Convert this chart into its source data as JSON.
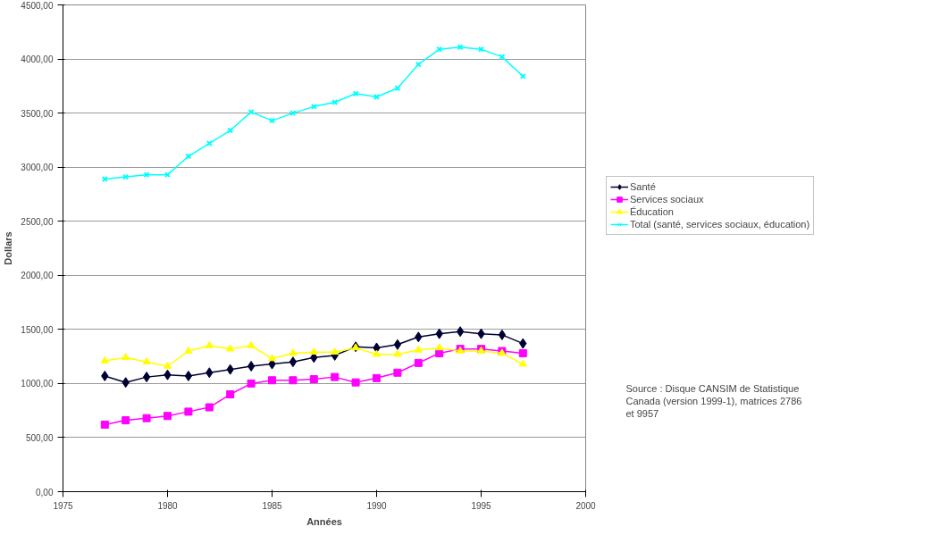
{
  "chart_data": {
    "type": "line",
    "xlabel": "Années",
    "ylabel": "Dollars",
    "x": [
      1977,
      1978,
      1979,
      1980,
      1981,
      1982,
      1983,
      1984,
      1985,
      1986,
      1987,
      1988,
      1989,
      1990,
      1991,
      1992,
      1993,
      1994,
      1995,
      1996,
      1997
    ],
    "series": [
      {
        "name": "Santé",
        "color": "#000033",
        "marker": "diamond",
        "values": [
          1070,
          1010,
          1060,
          1080,
          1070,
          1100,
          1130,
          1160,
          1180,
          1200,
          1240,
          1260,
          1340,
          1330,
          1360,
          1430,
          1460,
          1480,
          1460,
          1450,
          1370
        ]
      },
      {
        "name": "Services sociaux",
        "color": "#ff00ff",
        "marker": "square",
        "values": [
          620,
          660,
          680,
          700,
          740,
          780,
          900,
          1000,
          1030,
          1030,
          1040,
          1060,
          1010,
          1050,
          1100,
          1190,
          1280,
          1320,
          1320,
          1300,
          1280
        ]
      },
      {
        "name": "Éducation",
        "color": "#ffff00",
        "marker": "triangle",
        "values": [
          1210,
          1240,
          1200,
          1160,
          1300,
          1350,
          1320,
          1350,
          1230,
          1280,
          1290,
          1290,
          1330,
          1270,
          1270,
          1310,
          1330,
          1300,
          1300,
          1280,
          1180
        ]
      },
      {
        "name": "Total (santé, services sociaux, éducation)",
        "color": "#00ffff",
        "marker": "cross",
        "values": [
          2890,
          2910,
          2930,
          2930,
          3100,
          3220,
          3340,
          3510,
          3430,
          3500,
          3560,
          3600,
          3680,
          3650,
          3730,
          3950,
          4090,
          4110,
          4090,
          4020,
          3840
        ]
      }
    ],
    "xlim": [
      1975,
      2000
    ],
    "xticks": [
      1975,
      1980,
      1985,
      1990,
      1995,
      2000
    ],
    "ylim": [
      0,
      4500
    ],
    "yticks": [
      {
        "value": 0,
        "label": "0,00"
      },
      {
        "value": 500,
        "label": "500,00"
      },
      {
        "value": 1000,
        "label": "1000,00"
      },
      {
        "value": 1500,
        "label": "1500,00"
      },
      {
        "value": 2000,
        "label": "2000,00"
      },
      {
        "value": 2500,
        "label": "2500,00"
      },
      {
        "value": 3000,
        "label": "3000,00"
      },
      {
        "value": 3500,
        "label": "3500,00"
      },
      {
        "value": 4000,
        "label": "4000,00"
      },
      {
        "value": 4500,
        "label": "4500,00"
      }
    ],
    "grid": "y",
    "legend": "right",
    "line_style": "solid",
    "annotations": [
      "Source :  Disque CANSIM de Statistique Canada (version 1999-1),  matrices 2786 et 9957"
    ]
  }
}
